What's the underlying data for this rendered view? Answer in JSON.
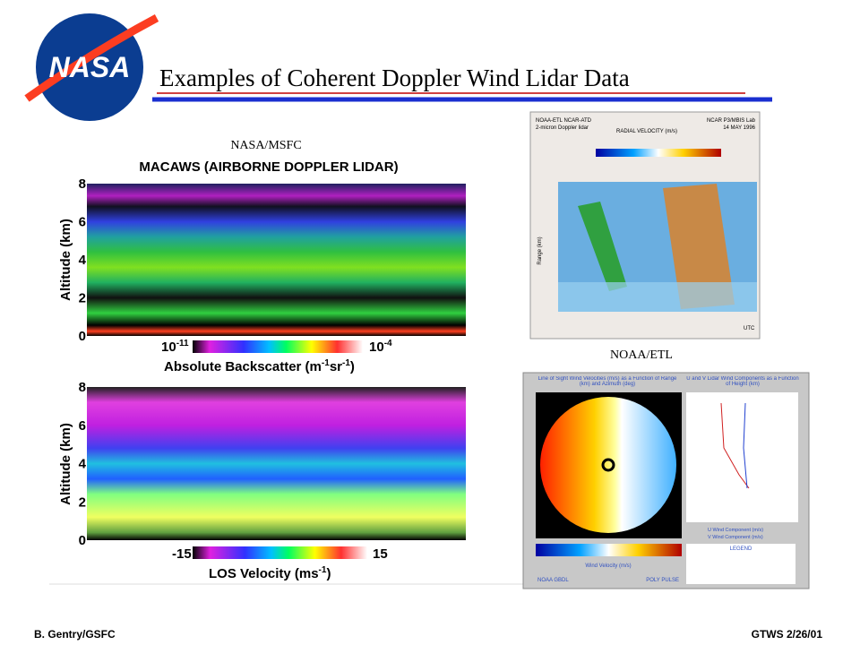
{
  "header": {
    "logo": "NASA",
    "title": "Examples of Coherent Doppler Wind Lidar Data"
  },
  "left": {
    "source": "NASA/MSFC",
    "top_panel": {
      "title": "MACAWS  (AIRBORNE DOPPLER LIDAR)",
      "y_label": "Altitude (km)",
      "ticks": [
        "0",
        "2",
        "4",
        "6",
        "8"
      ],
      "scale_min": [
        "10",
        "-11"
      ],
      "scale_max": [
        "10",
        "-4"
      ],
      "scale_label": [
        "Absolute Backscatter (m",
        "-1",
        "sr",
        "-1",
        ")"
      ]
    },
    "bottom_panel": {
      "y_label": "Altitude (km)",
      "ticks": [
        "0",
        "2",
        "4",
        "6",
        "8"
      ],
      "scale_min": "-15",
      "scale_max": "15",
      "scale_label": [
        "LOS Velocity (ms",
        "-1",
        ")"
      ]
    }
  },
  "right": {
    "source": "NOAA/ETL",
    "top_image": {
      "org": "NOAA-ETL NCAR-ATD",
      "sub": "2-micron Doppler lidar",
      "lab": "NCAR P3/MBIS Lab",
      "date": "14 MAY 1996",
      "scale_title": "RADIAL VELOCITY (m/s)",
      "y_label": "Range (km)",
      "unit": "UTC"
    },
    "bottom_image": {
      "left_title": "Line of Sight Wind Velocities (m/s) as a Function of Range (km) and Azimuth (deg)",
      "right_title": "U and V Lidar Wind Components as a Function of Height (km)",
      "scale_title": "Wind Velocity (m/s)",
      "org": "NOAA GBDL",
      "mode": "POLY PULSE",
      "legend": "LEGEND",
      "u_label": "U Wind Component (m/s)",
      "v_label": "V Wind Component (m/s)"
    }
  },
  "footer": {
    "left": "B. Gentry/GSFC",
    "right": "GTWS  2/26/01"
  }
}
